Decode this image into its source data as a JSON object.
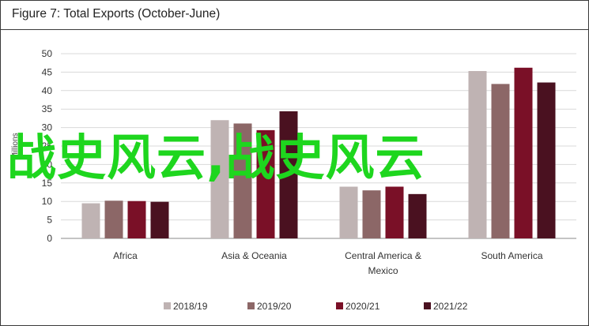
{
  "title": "Figure 7: Total Exports (October-June)",
  "overlay_text": "战史风云,战史风云",
  "colors": {
    "overlay": "#1ed61e",
    "grid": "#d9d9d9",
    "axis": "#888888"
  },
  "chart_data": {
    "type": "bar",
    "title": "Figure 7: Total Exports (October-June)",
    "ylabel": "Millions",
    "xlabel": "",
    "ylim": [
      0,
      50
    ],
    "yticks": [
      0,
      5,
      10,
      15,
      20,
      25,
      30,
      35,
      40,
      45,
      50
    ],
    "grid": true,
    "legend_position": "bottom",
    "categories": [
      [
        "Africa"
      ],
      [
        "Asia & Oceania"
      ],
      [
        "Central America &",
        "Mexico"
      ],
      [
        "South America"
      ]
    ],
    "series": [
      {
        "name": "2018/19",
        "color": "#bfb3b3",
        "values": [
          9.5,
          32,
          14,
          45.3
        ]
      },
      {
        "name": "2019/20",
        "color": "#8c6767",
        "values": [
          10.2,
          31.1,
          13,
          41.8
        ]
      },
      {
        "name": "2020/21",
        "color": "#7a1027",
        "values": [
          10.1,
          29.3,
          14,
          46.2
        ]
      },
      {
        "name": "2021/22",
        "color": "#4a1120",
        "values": [
          9.9,
          34.4,
          12,
          42.2
        ]
      }
    ]
  }
}
